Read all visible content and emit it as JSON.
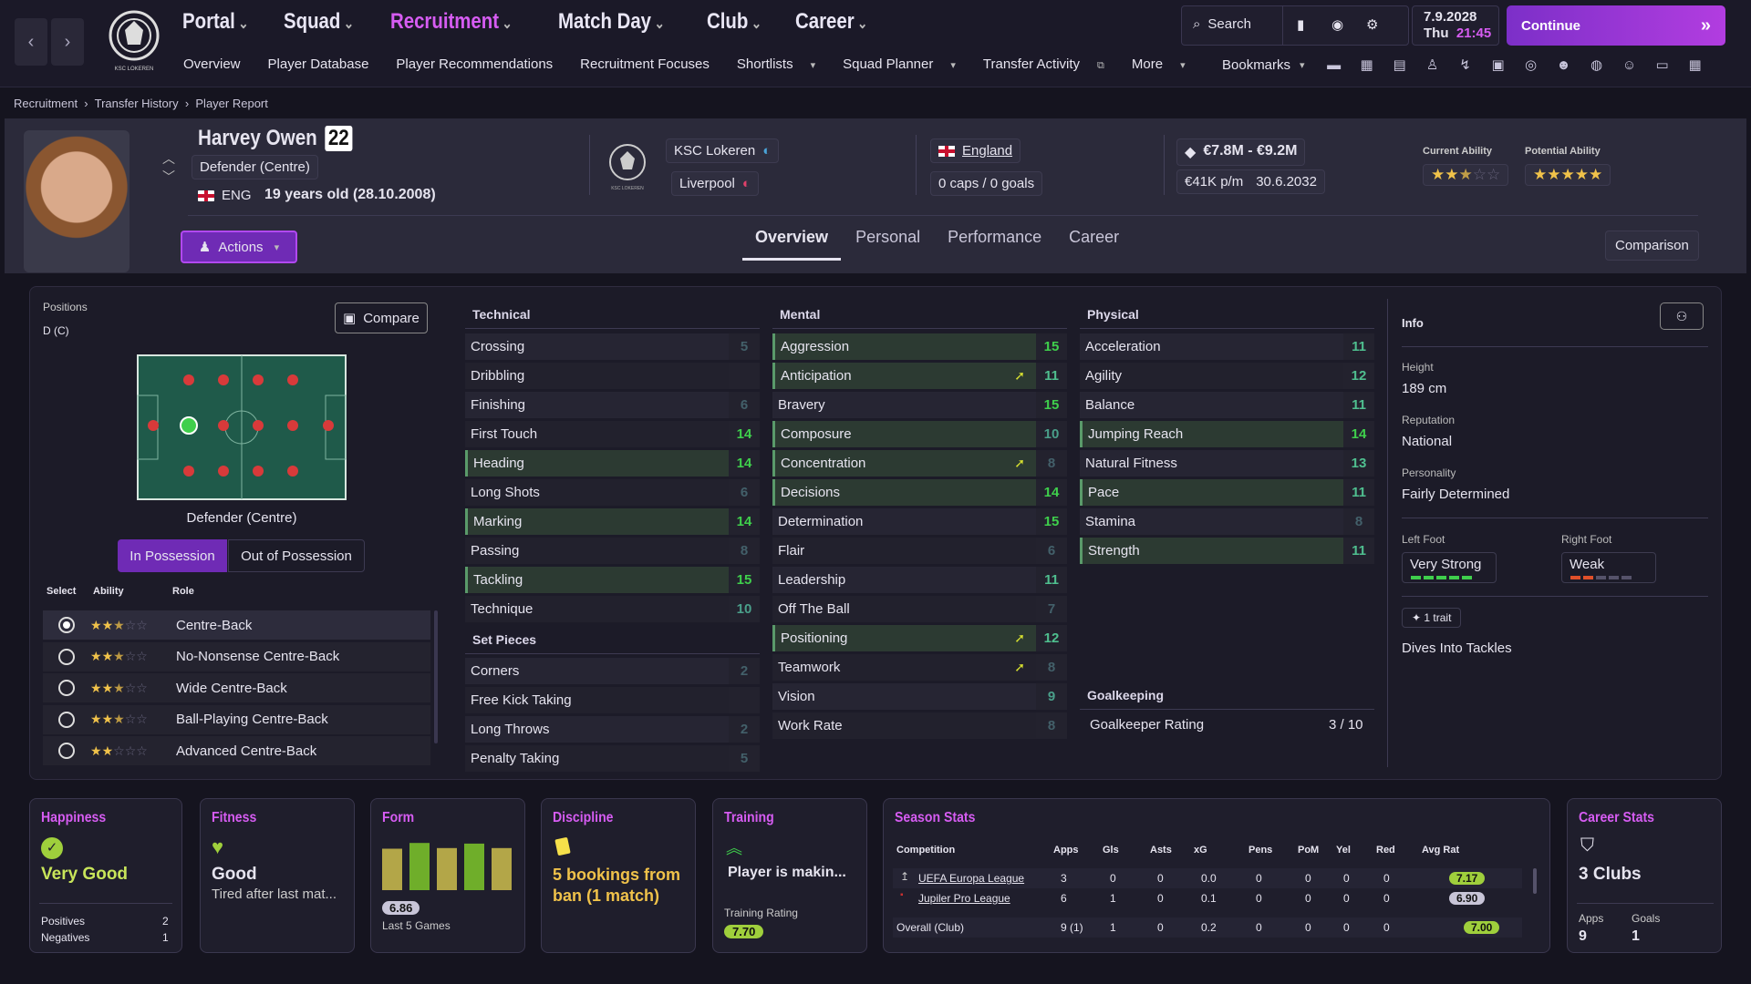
{
  "nav": {
    "main": [
      "Portal",
      "Squad",
      "Recruitment",
      "Match Day",
      "Club",
      "Career"
    ],
    "active_main": "Recruitment",
    "sub": [
      "Overview",
      "Player Database",
      "Player Recommendations",
      "Recruitment Focuses",
      "Shortlists",
      "Squad Planner",
      "Transfer Activity",
      "More"
    ],
    "search_label": "Search",
    "date": "7.9.2028",
    "day": "Thu",
    "time": "21:45",
    "continue_label": "Continue",
    "bookmarks_label": "Bookmarks",
    "club_logo_text": "KSC LOKEREN"
  },
  "breadcrumb": [
    "Recruitment",
    "Transfer History",
    "Player Report"
  ],
  "player": {
    "name": "Harvey Owen",
    "number": "22",
    "position": "Defender (Centre)",
    "nationality_code": "ENG",
    "age_text": "19 years old (28.10.2008)",
    "club": "KSC Lokeren",
    "loan_club": "Liverpool",
    "nation": "England",
    "caps": "0 caps / 0 goals",
    "value": "€7.8M - €9.2M",
    "wage": "€41K p/m",
    "contract": "30.6.2032",
    "current_ability_label": "Current Ability",
    "potential_ability_label": "Potential Ability",
    "current_ability_stars": 2.5,
    "potential_ability_stars": 5,
    "actions_label": "Actions",
    "comparison_label": "Comparison"
  },
  "tabs": [
    "Overview",
    "Personal",
    "Performance",
    "Career"
  ],
  "active_tab": "Overview",
  "positions": {
    "title": "Positions",
    "value": "D (C)",
    "compare_label": "Compare",
    "pitch_caption": "Defender (Centre)",
    "possession_tabs": [
      "In Possession",
      "Out of Possession"
    ],
    "headers": [
      "Select",
      "Ability",
      "Role"
    ],
    "roles": [
      {
        "name": "Centre-Back",
        "stars": 2.5,
        "selected": true
      },
      {
        "name": "No-Nonsense Centre-Back",
        "stars": 2.5,
        "selected": false
      },
      {
        "name": "Wide Centre-Back",
        "stars": 2.5,
        "selected": false
      },
      {
        "name": "Ball-Playing Centre-Back",
        "stars": 2.5,
        "selected": false
      },
      {
        "name": "Advanced Centre-Back",
        "stars": 2,
        "selected": false
      }
    ]
  },
  "technical": {
    "title": "Technical",
    "attrs": [
      {
        "name": "Crossing",
        "value": "5",
        "hl": false
      },
      {
        "name": "Dribbling",
        "value": "",
        "hl": false
      },
      {
        "name": "Finishing",
        "value": "6",
        "hl": false
      },
      {
        "name": "First Touch",
        "value": "14",
        "hl": false
      },
      {
        "name": "Heading",
        "value": "14",
        "hl": true
      },
      {
        "name": "Long Shots",
        "value": "6",
        "hl": false
      },
      {
        "name": "Marking",
        "value": "14",
        "hl": true
      },
      {
        "name": "Passing",
        "value": "8",
        "hl": false
      },
      {
        "name": "Tackling",
        "value": "15",
        "hl": true
      },
      {
        "name": "Technique",
        "value": "10",
        "hl": false
      }
    ]
  },
  "setpieces": {
    "title": "Set Pieces",
    "attrs": [
      {
        "name": "Corners",
        "value": "2"
      },
      {
        "name": "Free Kick Taking",
        "value": ""
      },
      {
        "name": "Long Throws",
        "value": "2"
      },
      {
        "name": "Penalty Taking",
        "value": "5"
      }
    ]
  },
  "mental": {
    "title": "Mental",
    "attrs": [
      {
        "name": "Aggression",
        "value": "15",
        "hl": true,
        "arrow": false
      },
      {
        "name": "Anticipation",
        "value": "11",
        "hl": true,
        "arrow": true
      },
      {
        "name": "Bravery",
        "value": "15",
        "hl": false,
        "arrow": false
      },
      {
        "name": "Composure",
        "value": "10",
        "hl": true,
        "arrow": false
      },
      {
        "name": "Concentration",
        "value": "8",
        "hl": true,
        "arrow": true
      },
      {
        "name": "Decisions",
        "value": "14",
        "hl": true,
        "arrow": false
      },
      {
        "name": "Determination",
        "value": "15",
        "hl": false,
        "arrow": false
      },
      {
        "name": "Flair",
        "value": "6",
        "hl": false,
        "arrow": false
      },
      {
        "name": "Leadership",
        "value": "11",
        "hl": false,
        "arrow": false
      },
      {
        "name": "Off The Ball",
        "value": "7",
        "hl": false,
        "arrow": false
      },
      {
        "name": "Positioning",
        "value": "12",
        "hl": true,
        "arrow": true
      },
      {
        "name": "Teamwork",
        "value": "8",
        "hl": false,
        "arrow": true
      },
      {
        "name": "Vision",
        "value": "9",
        "hl": false,
        "arrow": false
      },
      {
        "name": "Work Rate",
        "value": "8",
        "hl": false,
        "arrow": false
      }
    ]
  },
  "physical": {
    "title": "Physical",
    "attrs": [
      {
        "name": "Acceleration",
        "value": "11",
        "hl": false
      },
      {
        "name": "Agility",
        "value": "12",
        "hl": false
      },
      {
        "name": "Balance",
        "value": "11",
        "hl": false
      },
      {
        "name": "Jumping Reach",
        "value": "14",
        "hl": true
      },
      {
        "name": "Natural Fitness",
        "value": "13",
        "hl": false
      },
      {
        "name": "Pace",
        "value": "11",
        "hl": true
      },
      {
        "name": "Stamina",
        "value": "8",
        "hl": false
      },
      {
        "name": "Strength",
        "value": "11",
        "hl": true
      }
    ]
  },
  "goalkeeping": {
    "title": "Goalkeeping",
    "label": "Goalkeeper Rating",
    "value": "3 / 10"
  },
  "info": {
    "title": "Info",
    "height_label": "Height",
    "height": "189 cm",
    "reputation_label": "Reputation",
    "reputation": "National",
    "personality_label": "Personality",
    "personality": "Fairly Determined",
    "left_foot_label": "Left Foot",
    "left_foot": "Very Strong",
    "right_foot_label": "Right Foot",
    "right_foot": "Weak",
    "trait_count": "1 trait",
    "trait": "Dives Into Tackles"
  },
  "cards": {
    "happiness": {
      "title": "Happiness",
      "status": "Very Good",
      "pos_label": "Positives",
      "pos": "2",
      "neg_label": "Negatives",
      "neg": "1"
    },
    "fitness": {
      "title": "Fitness",
      "status": "Good",
      "note": "Tired after last mat..."
    },
    "form": {
      "title": "Form",
      "rating": "6.86",
      "caption": "Last 5 Games",
      "bars": [
        6.5,
        7.4,
        6.6,
        7.3,
        6.6
      ]
    },
    "discipline": {
      "title": "Discipline",
      "text": "5 bookings from ban (1 match)"
    },
    "training": {
      "title": "Training",
      "text": "Player is makin...",
      "rating_label": "Training Rating",
      "rating": "7.70"
    },
    "season": {
      "title": "Season Stats",
      "headers": [
        "Competition",
        "Apps",
        "Gls",
        "Asts",
        "xG",
        "Pens",
        "PoM",
        "Yel",
        "Red",
        "Avg Rat"
      ],
      "rows": [
        [
          "UEFA Europa League",
          "3",
          "0",
          "0",
          "0.0",
          "0",
          "0",
          "0",
          "0",
          "7.17"
        ],
        [
          "Jupiler Pro League",
          "6",
          "1",
          "0",
          "0.1",
          "0",
          "0",
          "0",
          "0",
          "6.90"
        ],
        [
          "Overall (Club)",
          "9 (1)",
          "1",
          "0",
          "0.2",
          "0",
          "0",
          "0",
          "0",
          "7.00"
        ]
      ]
    },
    "career": {
      "title": "Career Stats",
      "clubs": "3 Clubs",
      "apps_label": "Apps",
      "apps": "9",
      "goals_label": "Goals",
      "goals": "1"
    }
  },
  "colors": {
    "accent": "#d65cf2",
    "good": "#3fcf4c",
    "hl_row": "#2e3a2e"
  }
}
